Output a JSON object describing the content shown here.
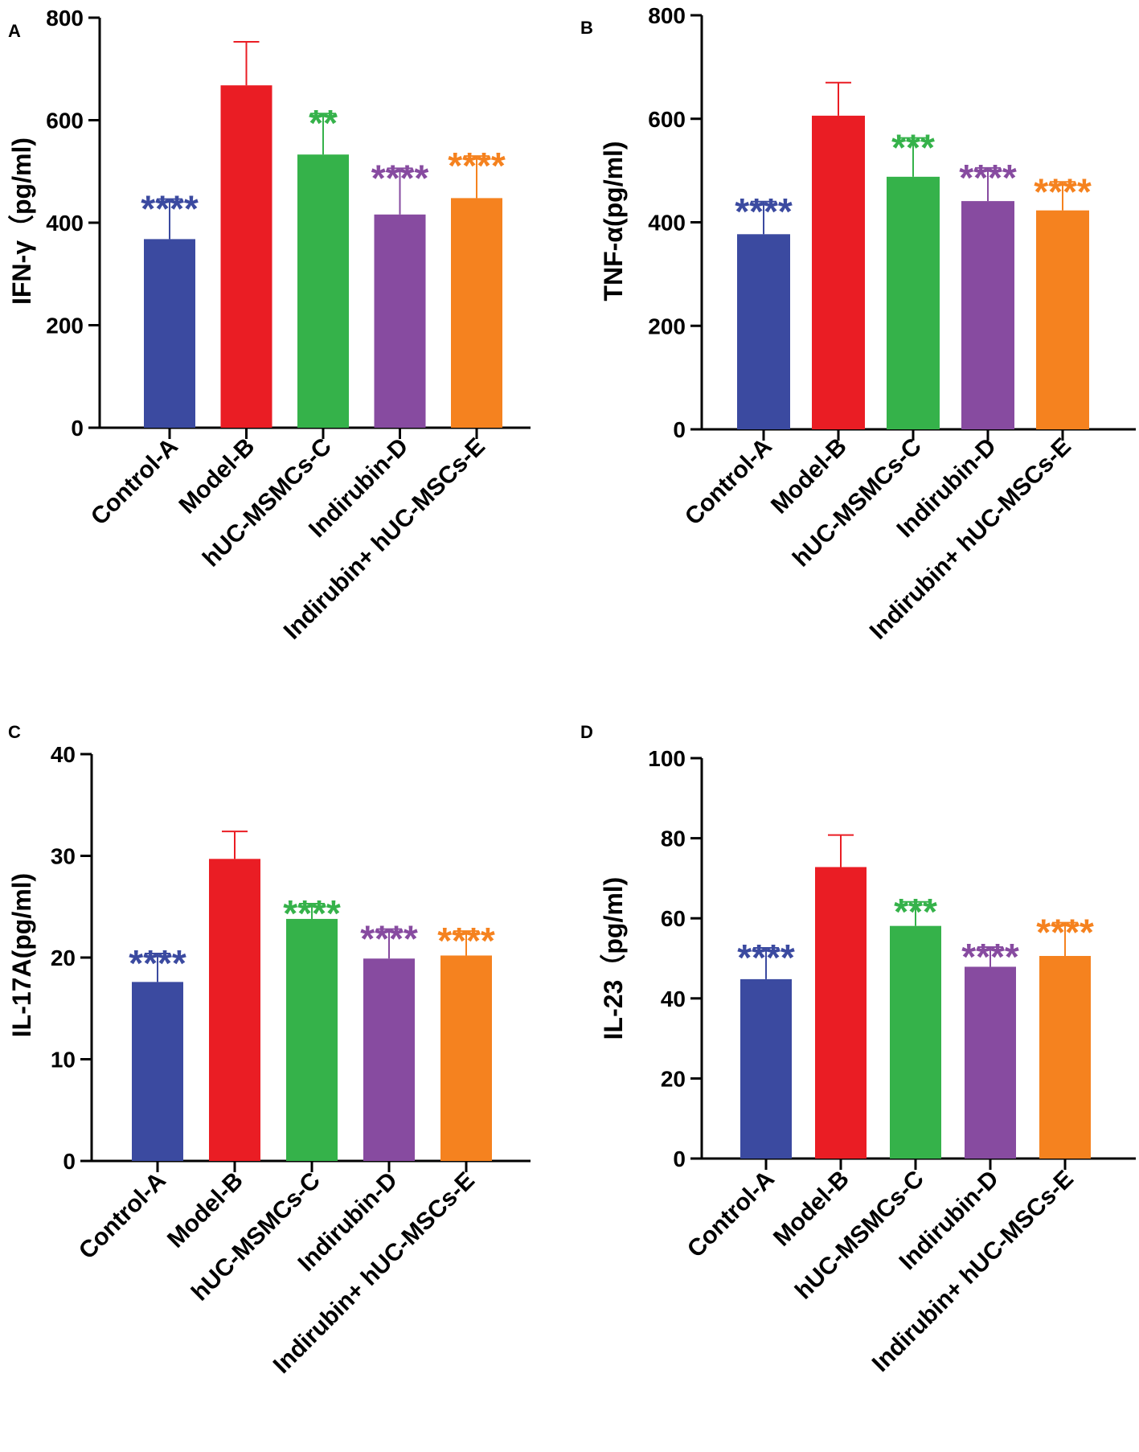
{
  "figure": {
    "colors": [
      "#3b4aa0",
      "#ea1d24",
      "#35b24a",
      "#874ba0",
      "#f5821f"
    ]
  },
  "chart_data": [
    {
      "panel": "A",
      "type": "bar",
      "ylabel": "IFN-γ（pg/ml)",
      "ylim": [
        0,
        800
      ],
      "yticks": [
        0,
        200,
        400,
        600,
        800
      ],
      "categories": [
        "Control-A",
        "Model-B",
        "hUC-MSMCs-C",
        "Indirubin-D",
        "Indirubin+ hUC-MSCs-E"
      ],
      "values": [
        368,
        668,
        533,
        416,
        448
      ],
      "errors": [
        78,
        85,
        80,
        90,
        82
      ],
      "significance": [
        "****",
        "",
        "**",
        "****",
        "****"
      ]
    },
    {
      "panel": "B",
      "type": "bar",
      "ylabel": "TNF-α(pg/ml)",
      "ylim": [
        0,
        800
      ],
      "yticks": [
        0,
        200,
        400,
        600,
        800
      ],
      "categories": [
        "Control-A",
        "Model-B",
        "hUC-MSMCs-C",
        "Indirubin-D",
        "Indirubin+ hUC-MSCs-E"
      ],
      "values": [
        377,
        606,
        488,
        441,
        423
      ],
      "errors": [
        63,
        64,
        75,
        64,
        55
      ],
      "significance": [
        "****",
        "",
        "***",
        "****",
        "****"
      ]
    },
    {
      "panel": "C",
      "type": "bar",
      "ylabel": "IL-17A(pg/ml)",
      "ylim": [
        0,
        40
      ],
      "yticks": [
        0,
        10,
        20,
        30,
        40
      ],
      "categories": [
        "Control-A",
        "Model-B",
        "hUC-MSMCs-C",
        "Indirubin-D",
        "Indirubin+ hUC-MSCs-E"
      ],
      "values": [
        17.6,
        29.7,
        23.8,
        19.9,
        20.2
      ],
      "errors": [
        2.8,
        2.7,
        1.5,
        2.9,
        2.4
      ],
      "significance": [
        "****",
        "",
        "****",
        "****",
        "****"
      ]
    },
    {
      "panel": "D",
      "type": "bar",
      "ylabel": "IL-23（pg/ml)",
      "ylim": [
        0,
        100
      ],
      "yticks": [
        0,
        20,
        40,
        60,
        80,
        100
      ],
      "categories": [
        "Control-A",
        "Model-B",
        "hUC-MSMCs-C",
        "Indirubin-D",
        "Indirubin+ hUC-MSCs-E"
      ],
      "values": [
        44.8,
        72.8,
        58.1,
        47.9,
        50.6
      ],
      "errors": [
        7.8,
        8.0,
        6.0,
        4.9,
        8.3
      ],
      "significance": [
        "****",
        "",
        "***",
        "****",
        "****"
      ]
    }
  ]
}
